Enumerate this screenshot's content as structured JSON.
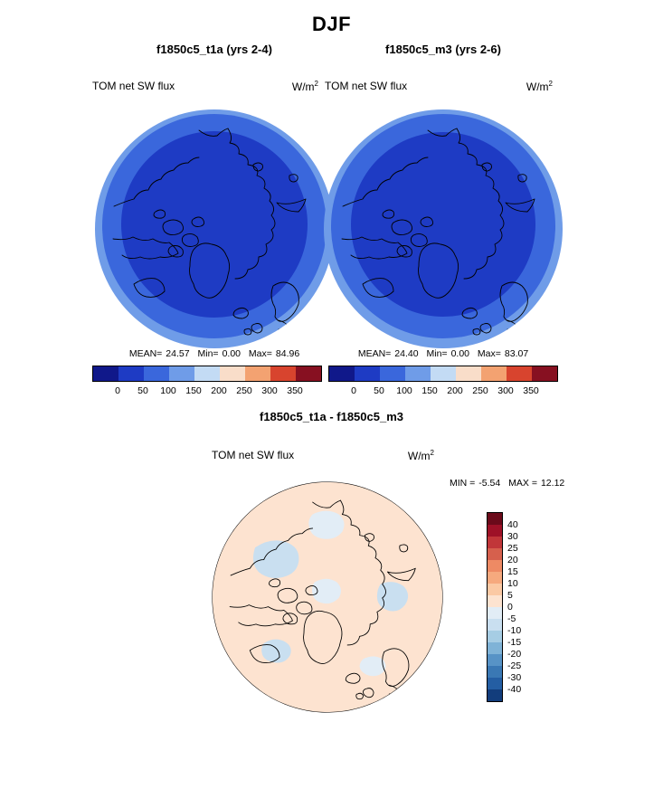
{
  "figure_title": "DJF",
  "panels": [
    {
      "title": "f1850c5_t1a (yrs 2-4)",
      "field": "TOM net SW flux",
      "units_base": "W/m",
      "units_exp": "2",
      "mean_label": "MEAN=",
      "mean": "24.57",
      "min_label": "Min=",
      "min": "0.00",
      "max_label": "Max=",
      "max": "84.96"
    },
    {
      "title": "f1850c5_m3 (yrs 2-6)",
      "field": "TOM net SW flux",
      "units_base": "W/m",
      "units_exp": "2",
      "mean_label": "MEAN=",
      "mean": "24.40",
      "min_label": "Min=",
      "min": "0.00",
      "max_label": "Max=",
      "max": "83.07"
    }
  ],
  "diff_panel": {
    "title": "f1850c5_t1a - f1850c5_m3",
    "field": "TOM net SW flux",
    "units_base": "W/m",
    "units_exp": "2",
    "min_label": "MIN =",
    "min": "-5.54",
    "max_label": "MAX =",
    "max": "12.12"
  },
  "colorbar_h": {
    "ticks": [
      "0",
      "50",
      "100",
      "150",
      "200",
      "250",
      "300",
      "350"
    ],
    "colors": [
      "#10188a",
      "#1e3bc4",
      "#3a67dc",
      "#6f9ce8",
      "#c3dbf4",
      "#f9ddc9",
      "#f3a271",
      "#d8442e",
      "#871021"
    ]
  },
  "colorbar_v": {
    "labels": [
      "40",
      "30",
      "25",
      "20",
      "15",
      "10",
      "5",
      "0",
      "-5",
      "-10",
      "-15",
      "-20",
      "-25",
      "-30",
      "-40"
    ],
    "colors": [
      "#6b0a1a",
      "#9e1127",
      "#c13639",
      "#d6604d",
      "#ee8a64",
      "#f6a97e",
      "#fbc9a4",
      "#fde3d0",
      "#e2edf6",
      "#c9dff0",
      "#a6cde4",
      "#7fb3d7",
      "#5793c6",
      "#3a78b4",
      "#245ea3",
      "#123d7c"
    ]
  },
  "chart_data": [
    {
      "type": "heatmap",
      "title": "f1850c5_t1a (yrs 2-4)",
      "season": "DJF",
      "variable": "TOM net SW flux",
      "units": "W/m^2",
      "projection": "north polar stereographic",
      "mean": 24.57,
      "min": 0.0,
      "max": 84.96,
      "contour_levels": [
        0,
        50,
        100,
        150,
        200,
        250,
        300,
        350
      ],
      "legend_position": "bottom"
    },
    {
      "type": "heatmap",
      "title": "f1850c5_m3 (yrs 2-6)",
      "season": "DJF",
      "variable": "TOM net SW flux",
      "units": "W/m^2",
      "projection": "north polar stereographic",
      "mean": 24.4,
      "min": 0.0,
      "max": 83.07,
      "contour_levels": [
        0,
        50,
        100,
        150,
        200,
        250,
        300,
        350
      ],
      "legend_position": "bottom"
    },
    {
      "type": "heatmap",
      "title": "f1850c5_t1a - f1850c5_m3",
      "season": "DJF",
      "variable": "TOM net SW flux",
      "units": "W/m^2",
      "projection": "north polar stereographic",
      "min": -5.54,
      "max": 12.12,
      "contour_levels": [
        -40,
        -30,
        -25,
        -20,
        -15,
        -10,
        -5,
        0,
        5,
        10,
        15,
        20,
        25,
        30,
        40
      ],
      "legend_position": "right"
    }
  ]
}
